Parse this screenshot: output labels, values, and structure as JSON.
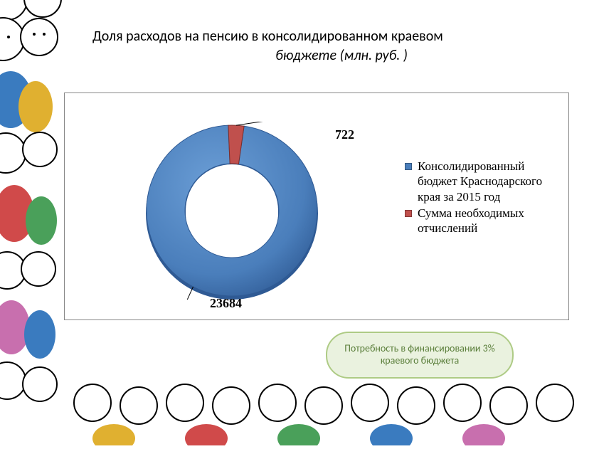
{
  "title": {
    "line1": "Доля расходов на пенсию в консолидированном краевом",
    "line2": "бюджете  (млн. руб. )",
    "fontsize": 20,
    "color": "#000000"
  },
  "chart": {
    "type": "donut",
    "series": [
      {
        "label": "Консолидированный бюджет Краснодарского края за 2015 год",
        "value": 23684,
        "color": "#4a7ebb"
      },
      {
        "label": " Сумма необходимых отчислений",
        "value": 722,
        "color": "#c0504d"
      }
    ],
    "inner_radius_pct": 55,
    "outer_radius_pct": 100,
    "background_color": "#ffffff",
    "border_color": "#888888",
    "data_label_fontsize": 18,
    "data_label_fontweight": "bold",
    "legend_fontsize": 17,
    "legend_marker_size": 10
  },
  "callout": {
    "text": "Потребность в финансировании 3% краевого бюджета",
    "fontsize": 14,
    "text_color": "#5a7e3a",
    "fill_color": "#eaf2df",
    "border_color": "#aecb85",
    "border_width": 2
  },
  "decoration": {
    "description": "cartoon children border on left and bottom edges",
    "face_outline": "#000000",
    "face_fill": "#ffffff",
    "hair_colors": [
      "#f4a940",
      "#5a3a1e",
      "#e06030",
      "#222222"
    ],
    "body_colors": [
      "#3a7bbf",
      "#e0b030",
      "#d04a4a",
      "#4aa05a",
      "#c86fae"
    ]
  }
}
